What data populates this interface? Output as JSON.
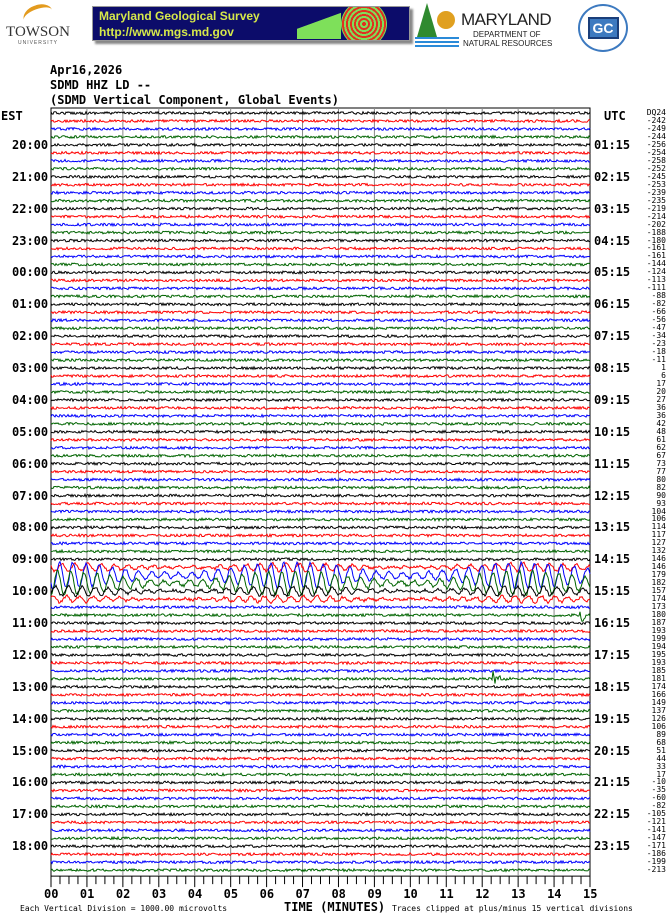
{
  "logos": {
    "towson": {
      "name": "TOWSON",
      "sub": "UNIVERSITY"
    },
    "mgs": {
      "line1": "Maryland Geological Survey",
      "line2": "http://www.mgs.md.gov"
    },
    "dnr": {
      "line1": "MARYLAND",
      "line2": "DEPARTMENT OF",
      "line3": "NATURAL RESOURCES"
    },
    "garrett": {
      "initials": "GC"
    }
  },
  "header": {
    "date": "Apr16,2026",
    "station": "SDMD HHZ LD --",
    "description": "(SDMD Vertical Component, Global Events)"
  },
  "chart_data": {
    "type": "line",
    "subtype": "helicorder",
    "xlabel": "TIME (MINUTES)",
    "x_ticks": [
      "00",
      "01",
      "02",
      "03",
      "04",
      "05",
      "06",
      "07",
      "08",
      "09",
      "10",
      "11",
      "12",
      "13",
      "14",
      "15"
    ],
    "xlim": [
      0,
      15
    ],
    "grid": "vertical lines every minute",
    "left_axis_title": "EST",
    "right_axis_title": "UTC",
    "trace_colors": [
      "#000000",
      "#ff0000",
      "#0000ff",
      "#006400"
    ],
    "left_labels": [
      "20:00",
      "21:00",
      "22:00",
      "23:00",
      "00:00",
      "01:00",
      "02:00",
      "03:00",
      "04:00",
      "05:00",
      "06:00",
      "07:00",
      "08:00",
      "09:00",
      "10:00",
      "11:00",
      "12:00",
      "13:00",
      "14:00",
      "15:00",
      "16:00",
      "17:00",
      "18:00"
    ],
    "right_labels": [
      "01:15",
      "02:15",
      "03:15",
      "04:15",
      "05:15",
      "06:15",
      "07:15",
      "08:15",
      "09:15",
      "10:15",
      "11:15",
      "12:15",
      "13:15",
      "14:15",
      "15:15",
      "16:15",
      "17:15",
      "18:15",
      "19:15",
      "20:15",
      "21:15",
      "22:15",
      "23:15"
    ],
    "trace_values": [
      "DQ24",
      "-242",
      "-249",
      "-244",
      "-256",
      "-254",
      "-258",
      "-252",
      "-245",
      "-253",
      "-239",
      "-235",
      "-219",
      "-214",
      "-202",
      "-188",
      "-180",
      "-161",
      "-161",
      "-144",
      "-124",
      "-113",
      "-111",
      "-88",
      "-82",
      "-66",
      "-56",
      "-47",
      "-34",
      "-23",
      "-18",
      "-11",
      "1",
      "6",
      "17",
      "20",
      "27",
      "36",
      "36",
      "42",
      "48",
      "61",
      "62",
      "67",
      "73",
      "77",
      "80",
      "82",
      "90",
      "93",
      "104",
      "106",
      "114",
      "117",
      "127",
      "132",
      "146",
      "146",
      "179",
      "182",
      "157",
      "174",
      "173",
      "180",
      "187",
      "193",
      "199",
      "194",
      "195",
      "193",
      "185",
      "181",
      "174",
      "166",
      "149",
      "137",
      "126",
      "106",
      "89",
      "68",
      "51",
      "44",
      "33",
      "17",
      "-10",
      "-35",
      "-60",
      "-82",
      "-105",
      "-121",
      "-141",
      "-147",
      "-171",
      "-186",
      "-199",
      "-213"
    ],
    "events": [
      {
        "trace": 57,
        "start_min": 0,
        "end_min": 15,
        "amplitude_div": 0.5
      },
      {
        "trace": 58,
        "start_min": 0,
        "end_min": 15,
        "amplitude_div": 1.6
      },
      {
        "trace": 59,
        "start_min": 0,
        "end_min": 15,
        "amplitude_div": 1.5
      },
      {
        "trace": 60,
        "start_min": 0,
        "end_min": 15,
        "amplitude_div": 0.6
      },
      {
        "trace": 61,
        "start_min": 0,
        "end_min": 15,
        "amplitude_div": 0.4
      },
      {
        "trace": 63,
        "start_min": 14.7,
        "end_min": 15,
        "amplitude_div": 1.4
      },
      {
        "trace": 71,
        "start_min": 12.3,
        "end_min": 12.8,
        "amplitude_div": 1.0
      }
    ],
    "footer_left": "Each Vertical Division = 1000.00 microvolts",
    "footer_right": "Traces clipped at plus/minus 15 vertical divisions"
  }
}
